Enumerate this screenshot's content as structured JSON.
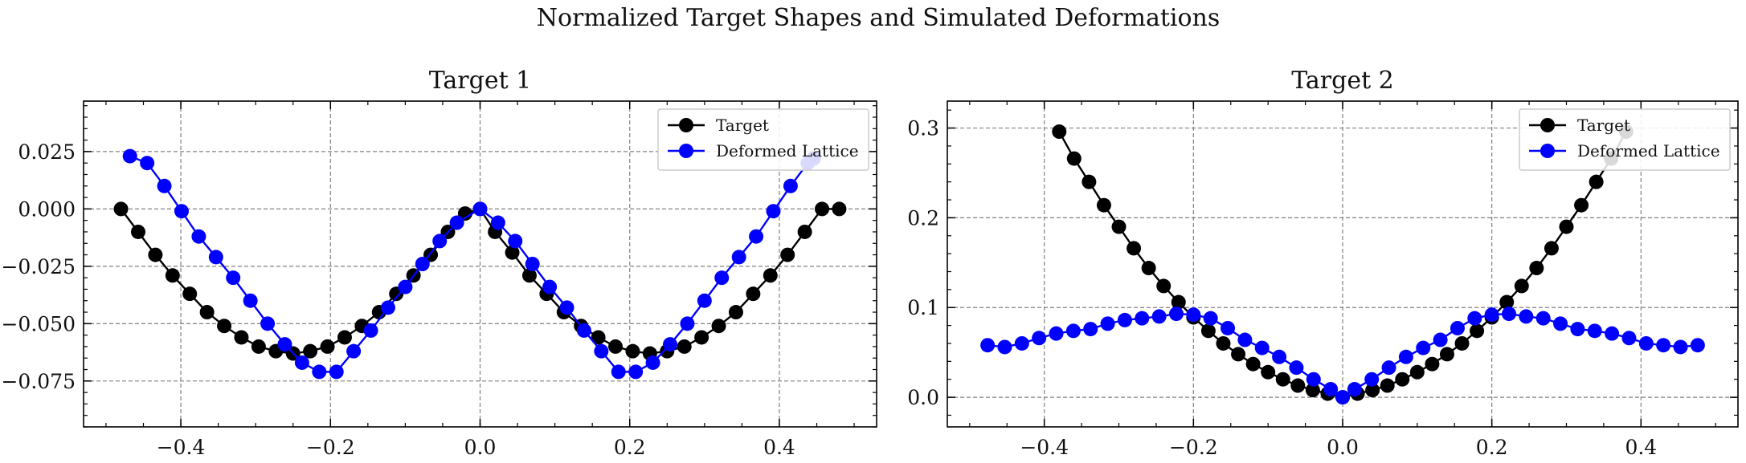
{
  "figure": {
    "title": "Normalized Target Shapes and Simulated Deformations"
  },
  "colors": {
    "target": "#000000",
    "deformed": "#0000ff",
    "grid": "#808080",
    "axes": "#000000"
  },
  "chart_data": [
    {
      "type": "line",
      "title": "Target 1",
      "xlabel": "",
      "ylabel": "",
      "xlim": [
        -0.53,
        0.53
      ],
      "ylim": [
        -0.095,
        0.047
      ],
      "xticks": [
        -0.4,
        -0.2,
        0.0,
        0.2,
        0.4
      ],
      "xtick_labels": [
        "−0.4",
        "−0.2",
        "0.0",
        "0.2",
        "0.4"
      ],
      "yticks": [
        0.025,
        0.0,
        -0.025,
        -0.05,
        -0.075
      ],
      "ytick_labels": [
        "0.025",
        "0.000",
        "−0.025",
        "−0.050",
        "−0.075"
      ],
      "grid": true,
      "legend": "top-right",
      "series": [
        {
          "name": "Target",
          "color": "#000000",
          "marker": "circle",
          "x": [
            -0.48,
            -0.457,
            -0.434,
            -0.411,
            -0.388,
            -0.365,
            -0.342,
            -0.319,
            -0.296,
            -0.273,
            -0.25,
            -0.227,
            -0.204,
            -0.181,
            -0.158,
            -0.135,
            -0.112,
            -0.089,
            -0.066,
            -0.043,
            -0.02,
            0.0,
            0.02,
            0.043,
            0.066,
            0.089,
            0.112,
            0.135,
            0.158,
            0.181,
            0.204,
            0.227,
            0.25,
            0.273,
            0.296,
            0.319,
            0.342,
            0.365,
            0.388,
            0.411,
            0.434,
            0.457,
            0.48
          ],
          "y": [
            0.0,
            -0.01,
            -0.02,
            -0.029,
            -0.037,
            -0.045,
            -0.051,
            -0.056,
            -0.06,
            -0.062,
            -0.063,
            -0.062,
            -0.06,
            -0.056,
            -0.051,
            -0.045,
            -0.037,
            -0.029,
            -0.02,
            -0.01,
            -0.002,
            0.0,
            -0.01,
            -0.019,
            -0.029,
            -0.037,
            -0.045,
            -0.051,
            -0.056,
            -0.06,
            -0.062,
            -0.063,
            -0.062,
            -0.06,
            -0.056,
            -0.051,
            -0.045,
            -0.037,
            -0.029,
            -0.02,
            -0.01,
            0.0,
            0.0
          ]
        },
        {
          "name": "Deformed Lattice",
          "color": "#0000ff",
          "marker": "circle",
          "x": [
            -0.468,
            -0.445,
            -0.422,
            -0.399,
            -0.376,
            -0.353,
            -0.33,
            -0.307,
            -0.284,
            -0.261,
            -0.238,
            -0.215,
            -0.192,
            -0.169,
            -0.146,
            -0.123,
            -0.1,
            -0.077,
            -0.054,
            -0.031,
            0.0,
            0.024,
            0.047,
            0.07,
            0.093,
            0.116,
            0.139,
            0.162,
            0.185,
            0.208,
            0.231,
            0.254,
            0.277,
            0.3,
            0.323,
            0.346,
            0.369,
            0.392,
            0.415,
            0.438,
            0.446
          ],
          "y": [
            0.023,
            0.02,
            0.01,
            -0.001,
            -0.012,
            -0.021,
            -0.03,
            -0.04,
            -0.05,
            -0.059,
            -0.067,
            -0.071,
            -0.071,
            -0.062,
            -0.053,
            -0.043,
            -0.034,
            -0.024,
            -0.014,
            -0.006,
            0.0,
            -0.006,
            -0.014,
            -0.024,
            -0.034,
            -0.043,
            -0.053,
            -0.062,
            -0.071,
            -0.071,
            -0.067,
            -0.059,
            -0.05,
            -0.04,
            -0.03,
            -0.021,
            -0.012,
            -0.001,
            0.01,
            0.02,
            0.022
          ]
        }
      ]
    },
    {
      "type": "line",
      "title": "Target 2",
      "xlabel": "",
      "ylabel": "",
      "xlim": [
        -0.53,
        0.53
      ],
      "ylim": [
        -0.033,
        0.33
      ],
      "xticks": [
        -0.4,
        -0.2,
        0.0,
        0.2,
        0.4
      ],
      "xtick_labels": [
        "−0.4",
        "−0.2",
        "0.0",
        "0.2",
        "0.4"
      ],
      "yticks": [
        0.3,
        0.2,
        0.1,
        0.0
      ],
      "ytick_labels": [
        "0.3",
        "0.2",
        "0.1",
        "0.0"
      ],
      "grid": true,
      "legend": "top-right",
      "series": [
        {
          "name": "Target",
          "color": "#000000",
          "marker": "circle",
          "x": [
            -0.38,
            -0.36,
            -0.34,
            -0.32,
            -0.3,
            -0.28,
            -0.26,
            -0.24,
            -0.22,
            -0.2,
            -0.18,
            -0.16,
            -0.14,
            -0.12,
            -0.1,
            -0.08,
            -0.06,
            -0.04,
            -0.02,
            0.0,
            0.02,
            0.04,
            0.06,
            0.08,
            0.1,
            0.12,
            0.14,
            0.16,
            0.18,
            0.2,
            0.22,
            0.24,
            0.26,
            0.28,
            0.3,
            0.32,
            0.34,
            0.36,
            0.38
          ],
          "y": [
            0.296,
            0.266,
            0.24,
            0.214,
            0.19,
            0.166,
            0.144,
            0.124,
            0.106,
            0.089,
            0.074,
            0.06,
            0.048,
            0.037,
            0.028,
            0.02,
            0.013,
            0.008,
            0.004,
            0.0,
            0.004,
            0.008,
            0.013,
            0.02,
            0.028,
            0.037,
            0.048,
            0.06,
            0.074,
            0.089,
            0.106,
            0.124,
            0.144,
            0.166,
            0.19,
            0.214,
            0.24,
            0.266,
            0.296
          ]
        },
        {
          "name": "Deformed Lattice",
          "color": "#0000ff",
          "marker": "circle",
          "x": [
            -0.476,
            -0.453,
            -0.43,
            -0.407,
            -0.384,
            -0.361,
            -0.338,
            -0.315,
            -0.292,
            -0.269,
            -0.246,
            -0.223,
            -0.2,
            -0.177,
            -0.154,
            -0.131,
            -0.108,
            -0.085,
            -0.062,
            -0.039,
            -0.016,
            0.0,
            0.016,
            0.039,
            0.062,
            0.085,
            0.108,
            0.131,
            0.154,
            0.177,
            0.2,
            0.223,
            0.246,
            0.269,
            0.292,
            0.315,
            0.338,
            0.361,
            0.384,
            0.407,
            0.43,
            0.453,
            0.476
          ],
          "y": [
            0.058,
            0.056,
            0.06,
            0.066,
            0.071,
            0.074,
            0.076,
            0.082,
            0.086,
            0.088,
            0.09,
            0.093,
            0.092,
            0.088,
            0.077,
            0.064,
            0.055,
            0.045,
            0.033,
            0.02,
            0.009,
            0.0,
            0.009,
            0.02,
            0.033,
            0.045,
            0.055,
            0.064,
            0.077,
            0.088,
            0.092,
            0.093,
            0.09,
            0.088,
            0.082,
            0.076,
            0.074,
            0.071,
            0.066,
            0.06,
            0.058,
            0.056,
            0.058
          ]
        }
      ]
    }
  ]
}
